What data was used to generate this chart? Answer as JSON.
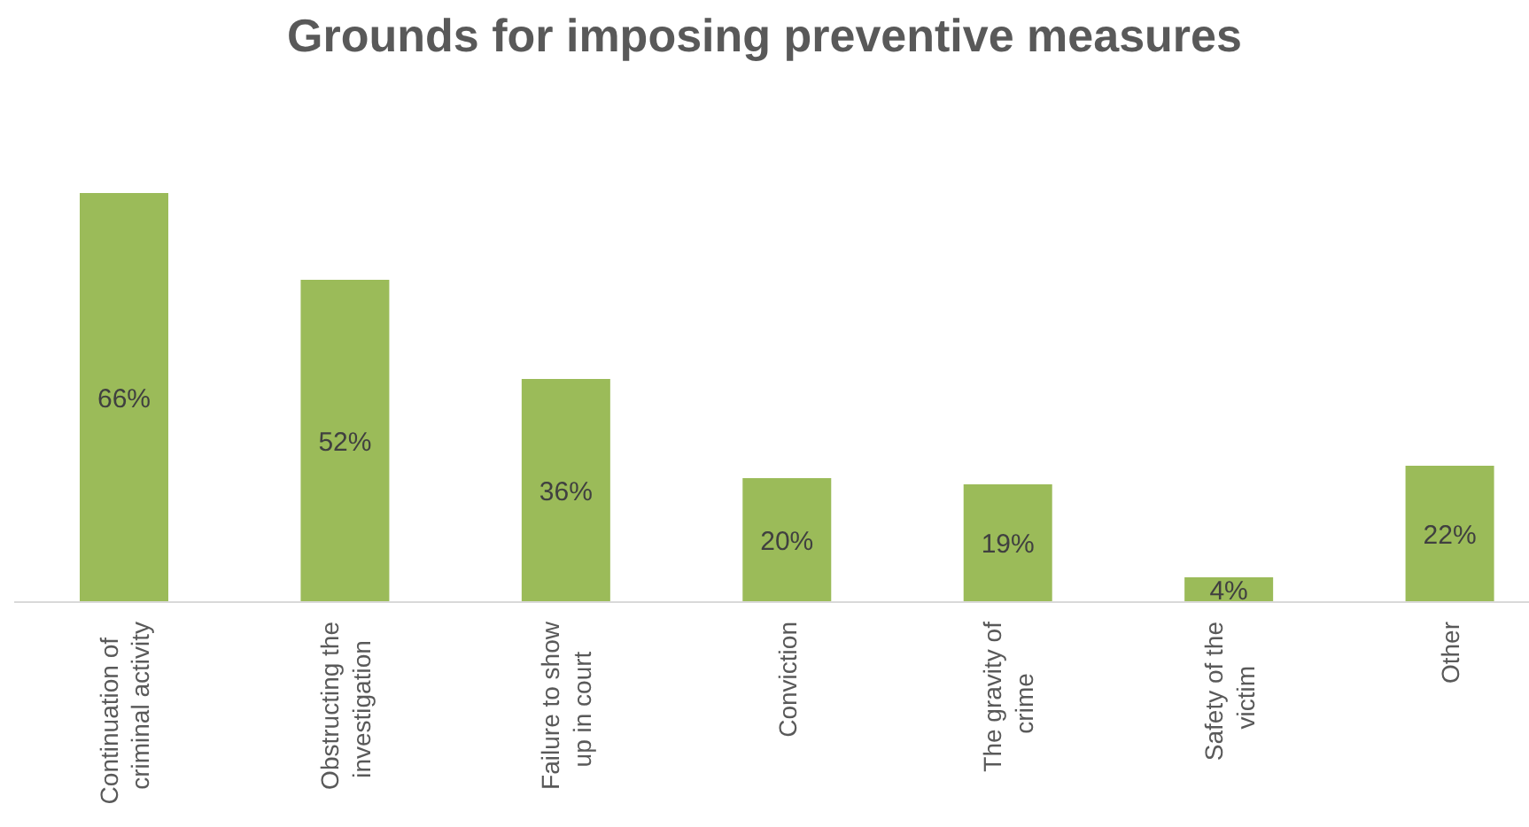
{
  "chart_data": {
    "type": "bar",
    "title": "Grounds for imposing preventive measures",
    "categories": [
      "Continuation of criminal activity",
      "Obstructing the investigation",
      "Failure to show up in court",
      "Conviction",
      "The gravity of crime",
      "Safety of the victim",
      "Other"
    ],
    "values": [
      66,
      52,
      36,
      20,
      19,
      4,
      22
    ],
    "color": "#9bbb59",
    "value_labels": [
      "66%",
      "52%",
      "36%",
      "20%",
      "19%",
      "4%",
      "22%"
    ],
    "tick_labels": "x"
  }
}
